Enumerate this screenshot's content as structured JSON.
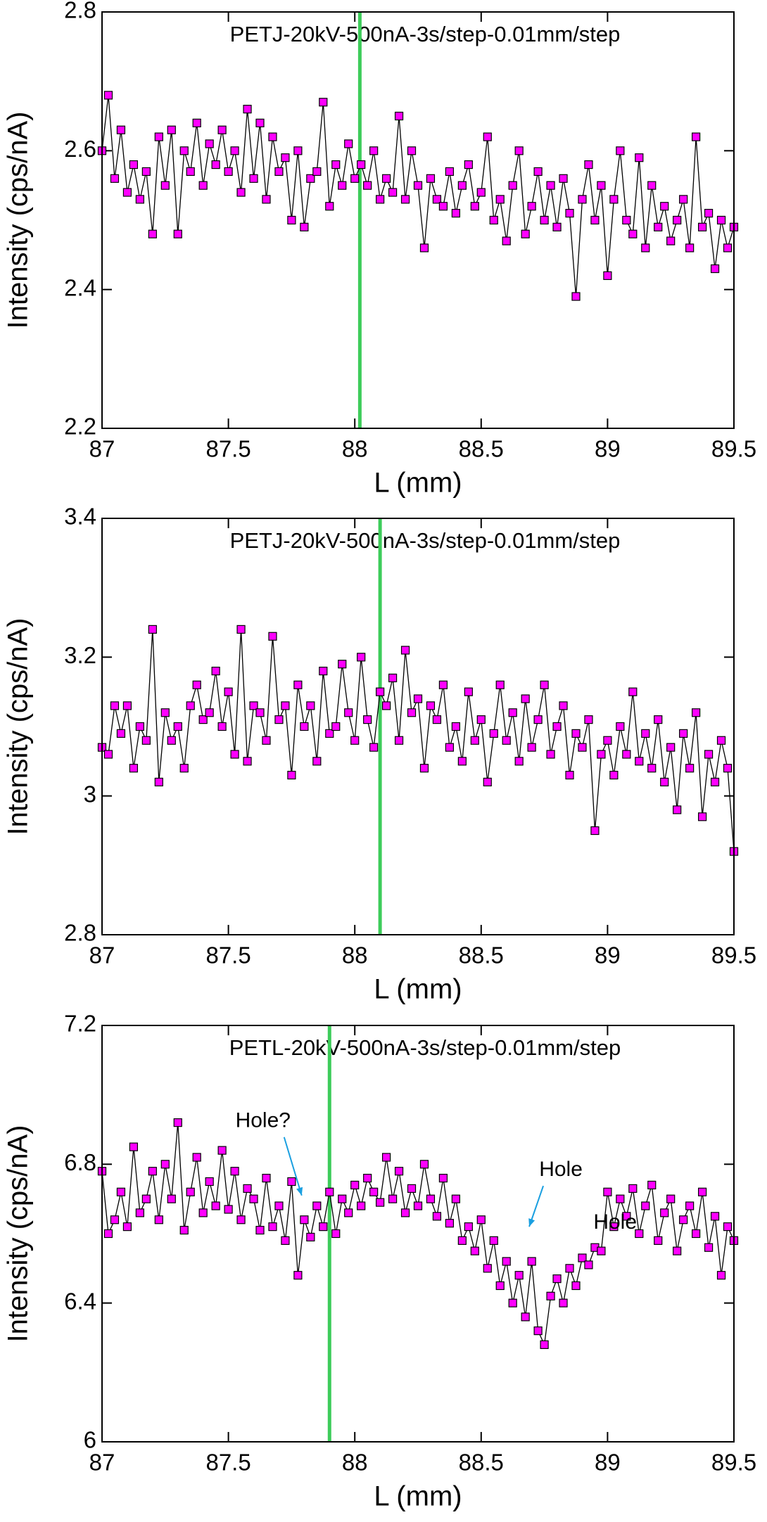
{
  "chart_data": [
    {
      "type": "line",
      "title": "PETJ-20kV-500nA-3s/step-0.01mm/step",
      "x_label": "L (mm)",
      "y_label": "Intensity (cps/nA)",
      "xlim": [
        87,
        89.5
      ],
      "xticks": [
        87,
        87.5,
        88,
        88.5,
        89,
        89.5
      ],
      "ylim": [
        2.2,
        2.8
      ],
      "yticks": [
        2.2,
        2.4,
        2.6,
        2.8
      ],
      "color": "#ff00ff",
      "vline": 88.02,
      "vline_color": "#3dcc5a",
      "x": [
        87,
        87.025,
        87.05,
        87.075,
        87.1,
        87.125,
        87.15,
        87.175,
        87.2,
        87.225,
        87.25,
        87.275,
        87.3,
        87.325,
        87.35,
        87.375,
        87.4,
        87.425,
        87.45,
        87.475,
        87.5,
        87.525,
        87.55,
        87.575,
        87.6,
        87.625,
        87.65,
        87.675,
        87.7,
        87.725,
        87.75,
        87.775,
        87.8,
        87.825,
        87.85,
        87.875,
        87.9,
        87.925,
        87.95,
        87.975,
        88,
        88.025,
        88.05,
        88.075,
        88.1,
        88.125,
        88.15,
        88.175,
        88.2,
        88.225,
        88.25,
        88.275,
        88.3,
        88.325,
        88.35,
        88.375,
        88.4,
        88.425,
        88.45,
        88.475,
        88.5,
        88.525,
        88.55,
        88.575,
        88.6,
        88.625,
        88.65,
        88.675,
        88.7,
        88.725,
        88.75,
        88.775,
        88.8,
        88.825,
        88.85,
        88.875,
        88.9,
        88.925,
        88.95,
        88.975,
        89,
        89.025,
        89.05,
        89.075,
        89.1,
        89.125,
        89.15,
        89.175,
        89.2,
        89.225,
        89.25,
        89.275,
        89.3,
        89.325,
        89.35,
        89.375,
        89.4,
        89.425,
        89.45,
        89.475,
        89.5
      ],
      "values": [
        2.6,
        2.68,
        2.56,
        2.63,
        2.54,
        2.58,
        2.53,
        2.57,
        2.48,
        2.62,
        2.55,
        2.63,
        2.48,
        2.6,
        2.57,
        2.64,
        2.55,
        2.61,
        2.58,
        2.63,
        2.57,
        2.6,
        2.54,
        2.66,
        2.56,
        2.64,
        2.53,
        2.62,
        2.57,
        2.59,
        2.5,
        2.6,
        2.49,
        2.56,
        2.57,
        2.67,
        2.52,
        2.58,
        2.55,
        2.61,
        2.56,
        2.58,
        2.55,
        2.6,
        2.53,
        2.56,
        2.54,
        2.65,
        2.53,
        2.6,
        2.55,
        2.46,
        2.56,
        2.53,
        2.52,
        2.57,
        2.51,
        2.55,
        2.58,
        2.52,
        2.54,
        2.62,
        2.5,
        2.53,
        2.47,
        2.55,
        2.6,
        2.48,
        2.52,
        2.57,
        2.5,
        2.55,
        2.49,
        2.56,
        2.51,
        2.39,
        2.53,
        2.58,
        2.5,
        2.55,
        2.42,
        2.53,
        2.6,
        2.5,
        2.48,
        2.59,
        2.46,
        2.55,
        2.49,
        2.52,
        2.47,
        2.5,
        2.53,
        2.46,
        2.62,
        2.49,
        2.51,
        2.43,
        2.5,
        2.46,
        2.49
      ]
    },
    {
      "type": "line",
      "title": "PETJ-20kV-500nA-3s/step-0.01mm/step",
      "x_label": "L (mm)",
      "y_label": "Intensity (cps/nA)",
      "xlim": [
        87,
        89.5
      ],
      "xticks": [
        87,
        87.5,
        88,
        88.5,
        89,
        89.5
      ],
      "ylim": [
        2.8,
        3.4
      ],
      "yticks": [
        2.8,
        3,
        3.2,
        3.4
      ],
      "color": "#ff00ff",
      "vline": 88.1,
      "vline_color": "#3dcc5a",
      "x": [
        87,
        87.025,
        87.05,
        87.075,
        87.1,
        87.125,
        87.15,
        87.175,
        87.2,
        87.225,
        87.25,
        87.275,
        87.3,
        87.325,
        87.35,
        87.375,
        87.4,
        87.425,
        87.45,
        87.475,
        87.5,
        87.525,
        87.55,
        87.575,
        87.6,
        87.625,
        87.65,
        87.675,
        87.7,
        87.725,
        87.75,
        87.775,
        87.8,
        87.825,
        87.85,
        87.875,
        87.9,
        87.925,
        87.95,
        87.975,
        88,
        88.025,
        88.05,
        88.075,
        88.1,
        88.125,
        88.15,
        88.175,
        88.2,
        88.225,
        88.25,
        88.275,
        88.3,
        88.325,
        88.35,
        88.375,
        88.4,
        88.425,
        88.45,
        88.475,
        88.5,
        88.525,
        88.55,
        88.575,
        88.6,
        88.625,
        88.65,
        88.675,
        88.7,
        88.725,
        88.75,
        88.775,
        88.8,
        88.825,
        88.85,
        88.875,
        88.9,
        88.925,
        88.95,
        88.975,
        89,
        89.025,
        89.05,
        89.075,
        89.1,
        89.125,
        89.15,
        89.175,
        89.2,
        89.225,
        89.25,
        89.275,
        89.3,
        89.325,
        89.35,
        89.375,
        89.4,
        89.425,
        89.45,
        89.475,
        89.5
      ],
      "values": [
        3.07,
        3.06,
        3.13,
        3.09,
        3.13,
        3.04,
        3.1,
        3.08,
        3.24,
        3.02,
        3.12,
        3.08,
        3.1,
        3.04,
        3.13,
        3.16,
        3.11,
        3.12,
        3.18,
        3.1,
        3.15,
        3.06,
        3.24,
        3.05,
        3.13,
        3.12,
        3.08,
        3.23,
        3.11,
        3.13,
        3.03,
        3.16,
        3.1,
        3.13,
        3.05,
        3.18,
        3.09,
        3.1,
        3.19,
        3.12,
        3.08,
        3.2,
        3.11,
        3.07,
        3.15,
        3.13,
        3.17,
        3.08,
        3.21,
        3.12,
        3.14,
        3.04,
        3.13,
        3.11,
        3.16,
        3.07,
        3.1,
        3.05,
        3.15,
        3.08,
        3.11,
        3.02,
        3.09,
        3.16,
        3.08,
        3.12,
        3.05,
        3.14,
        3.07,
        3.11,
        3.16,
        3.06,
        3.1,
        3.13,
        3.03,
        3.09,
        3.07,
        3.11,
        2.95,
        3.06,
        3.08,
        3.03,
        3.1,
        3.06,
        3.15,
        3.05,
        3.09,
        3.04,
        3.11,
        3.02,
        3.07,
        2.98,
        3.09,
        3.04,
        3.12,
        2.97,
        3.06,
        3.02,
        3.08,
        3.04,
        2.92
      ]
    },
    {
      "type": "line",
      "title": "PETL-20kV-500nA-3s/step-0.01mm/step",
      "x_label": "L (mm)",
      "y_label": "Intensity (cps/nA)",
      "xlim": [
        87,
        89.5
      ],
      "xticks": [
        87,
        87.5,
        88,
        88.5,
        89,
        89.5
      ],
      "ylim": [
        6,
        7.2
      ],
      "yticks": [
        6,
        6.4,
        6.8,
        7.2
      ],
      "color": "#ff00ff",
      "vline": 87.9,
      "vline_color": "#3dcc5a",
      "annotations": [
        {
          "text": "Hole?",
          "x": 87.79,
          "y": 6.71,
          "arrow": true
        },
        {
          "text": "Hole",
          "x": 88.69,
          "y": 6.62,
          "arrow": true
        },
        {
          "text": "Hole",
          "x": 89.03,
          "y": 6.63,
          "arrow": false
        }
      ],
      "annotation_color": "#1a9fe0",
      "x": [
        87,
        87.025,
        87.05,
        87.075,
        87.1,
        87.125,
        87.15,
        87.175,
        87.2,
        87.225,
        87.25,
        87.275,
        87.3,
        87.325,
        87.35,
        87.375,
        87.4,
        87.425,
        87.45,
        87.475,
        87.5,
        87.525,
        87.55,
        87.575,
        87.6,
        87.625,
        87.65,
        87.675,
        87.7,
        87.725,
        87.75,
        87.775,
        87.8,
        87.825,
        87.85,
        87.875,
        87.9,
        87.925,
        87.95,
        87.975,
        88,
        88.025,
        88.05,
        88.075,
        88.1,
        88.125,
        88.15,
        88.175,
        88.2,
        88.225,
        88.25,
        88.275,
        88.3,
        88.325,
        88.35,
        88.375,
        88.4,
        88.425,
        88.45,
        88.475,
        88.5,
        88.525,
        88.55,
        88.575,
        88.6,
        88.625,
        88.65,
        88.675,
        88.7,
        88.725,
        88.75,
        88.775,
        88.8,
        88.825,
        88.85,
        88.875,
        88.9,
        88.925,
        88.95,
        88.975,
        89,
        89.025,
        89.05,
        89.075,
        89.1,
        89.125,
        89.15,
        89.175,
        89.2,
        89.225,
        89.25,
        89.275,
        89.3,
        89.325,
        89.35,
        89.375,
        89.4,
        89.425,
        89.45,
        89.475,
        89.5
      ],
      "values": [
        6.78,
        6.6,
        6.64,
        6.72,
        6.62,
        6.85,
        6.66,
        6.7,
        6.78,
        6.64,
        6.8,
        6.7,
        6.92,
        6.61,
        6.72,
        6.82,
        6.66,
        6.75,
        6.68,
        6.84,
        6.67,
        6.78,
        6.64,
        6.73,
        6.7,
        6.61,
        6.76,
        6.62,
        6.68,
        6.58,
        6.75,
        6.48,
        6.64,
        6.59,
        6.68,
        6.62,
        6.72,
        6.6,
        6.7,
        6.66,
        6.74,
        6.68,
        6.76,
        6.72,
        6.69,
        6.82,
        6.7,
        6.78,
        6.66,
        6.73,
        6.68,
        6.8,
        6.7,
        6.65,
        6.76,
        6.63,
        6.7,
        6.58,
        6.62,
        6.55,
        6.64,
        6.5,
        6.58,
        6.45,
        6.52,
        6.4,
        6.48,
        6.36,
        6.52,
        6.32,
        6.28,
        6.42,
        6.47,
        6.4,
        6.5,
        6.45,
        6.53,
        6.51,
        6.56,
        6.55,
        6.72,
        6.62,
        6.7,
        6.65,
        6.73,
        6.6,
        6.68,
        6.74,
        6.58,
        6.66,
        6.7,
        6.55,
        6.64,
        6.68,
        6.6,
        6.72,
        6.56,
        6.65,
        6.48,
        6.62,
        6.58
      ]
    }
  ]
}
